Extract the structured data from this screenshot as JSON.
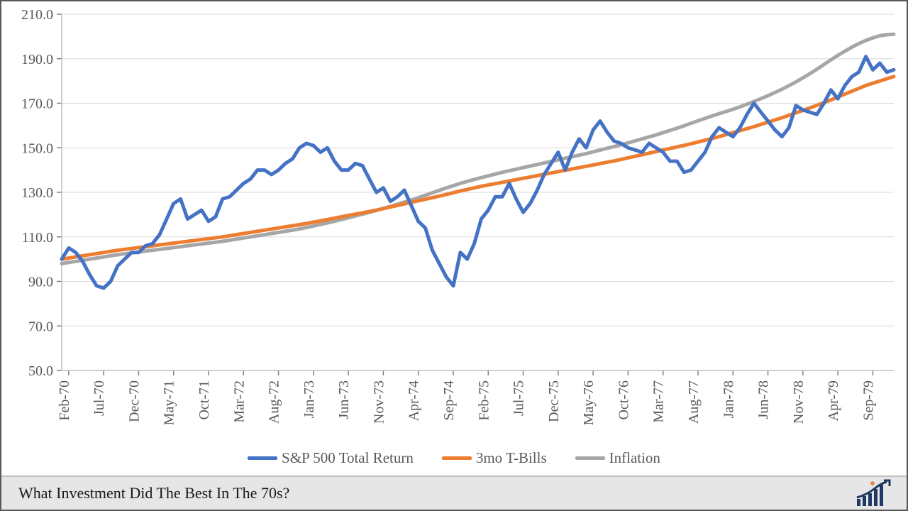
{
  "footer": {
    "title": "What Investment Did The Best In The 70s?"
  },
  "chart": {
    "type": "line",
    "background_color": "#ffffff",
    "grid_color": "#d9d9d9",
    "axis_color": "#bfbfbf",
    "tick_color": "#808080",
    "label_color": "#595959",
    "label_fontsize": 20,
    "ylim": [
      50,
      210
    ],
    "ytick_step": 20,
    "yticks": [
      "50.0",
      "70.0",
      "90.0",
      "110.0",
      "130.0",
      "150.0",
      "170.0",
      "190.0",
      "210.0"
    ],
    "xticks": [
      "Feb-70",
      "Jul-70",
      "Dec-70",
      "May-71",
      "Oct-71",
      "Mar-72",
      "Aug-72",
      "Jan-73",
      "Jun-73",
      "Nov-73",
      "Apr-74",
      "Sep-74",
      "Feb-75",
      "Jul-75",
      "Dec-75",
      "May-76",
      "Oct-76",
      "Mar-77",
      "Aug-77",
      "Jan-78",
      "Jun-78",
      "Nov-78",
      "Apr-79",
      "Sep-79"
    ],
    "x_count": 120,
    "line_width": 5,
    "series": [
      {
        "name": "S&P 500 Total Return",
        "color": "#4472c4",
        "values": [
          100,
          105,
          103,
          99,
          93,
          88,
          87,
          90,
          97,
          100,
          103,
          103,
          106,
          107,
          111,
          118,
          125,
          127,
          118,
          120,
          122,
          117,
          119,
          127,
          128,
          131,
          134,
          136,
          140,
          140,
          138,
          140,
          143,
          145,
          150,
          152,
          151,
          148,
          150,
          144,
          140,
          140,
          143,
          142,
          136,
          130,
          132,
          126,
          128,
          131,
          124,
          117,
          114,
          104,
          98,
          92,
          88,
          103,
          100,
          107,
          118,
          122,
          128,
          128,
          134,
          127,
          121,
          125,
          131,
          138,
          143,
          148,
          140,
          148,
          154,
          150,
          158,
          162,
          157,
          153,
          152,
          150,
          149,
          148,
          152,
          150,
          148,
          144,
          144,
          139,
          140,
          144,
          148,
          155,
          159,
          157,
          155,
          159,
          165,
          170,
          166,
          162,
          158,
          155,
          159,
          169,
          167,
          166,
          165,
          170,
          176,
          172,
          178,
          182,
          184,
          191,
          185,
          188,
          184,
          185
        ]
      },
      {
        "name": "3mo T-Bills",
        "color": "#ed7d31",
        "values": [
          100,
          100.5,
          101,
          101.5,
          102,
          102.5,
          103,
          103.5,
          104,
          104.4,
          104.8,
          105.2,
          105.6,
          106,
          106.4,
          106.8,
          107.2,
          107.6,
          108,
          108.4,
          108.8,
          109.2,
          109.6,
          110,
          110.5,
          111,
          111.5,
          112,
          112.5,
          113,
          113.5,
          114,
          114.5,
          115,
          115.5,
          116,
          116.6,
          117.2,
          117.8,
          118.4,
          119,
          119.6,
          120.2,
          120.8,
          121.4,
          122,
          122.7,
          123.4,
          124.1,
          124.8,
          125.5,
          126.2,
          126.9,
          127.6,
          128.3,
          129,
          129.8,
          130.6,
          131.3,
          132,
          132.7,
          133.3,
          133.9,
          134.5,
          135.1,
          135.7,
          136.3,
          136.9,
          137.5,
          138.1,
          138.7,
          139.3,
          139.9,
          140.5,
          141.1,
          141.7,
          142.3,
          142.9,
          143.5,
          144.1,
          144.8,
          145.5,
          146.2,
          146.9,
          147.6,
          148.3,
          149,
          149.7,
          150.4,
          151.1,
          151.8,
          152.6,
          153.4,
          154.2,
          155,
          155.9,
          156.8,
          157.7,
          158.6,
          159.5,
          160.5,
          161.5,
          162.5,
          163.5,
          164.6,
          165.7,
          166.8,
          167.9,
          169.1,
          170.3,
          171.5,
          172.8,
          174.1,
          175.4,
          176.7,
          178,
          179,
          180,
          181,
          182
        ]
      },
      {
        "name": "Inflation",
        "color": "#a6a6a6",
        "values": [
          98,
          98.5,
          99,
          99.5,
          100,
          100.5,
          101,
          101.5,
          102,
          102.4,
          102.8,
          103.2,
          103.6,
          104,
          104.4,
          104.8,
          105.2,
          105.6,
          106,
          106.4,
          106.8,
          107.2,
          107.6,
          108,
          108.5,
          109,
          109.5,
          110,
          110.5,
          111,
          111.5,
          112,
          112.5,
          113,
          113.6,
          114.2,
          114.9,
          115.6,
          116.3,
          117,
          117.8,
          118.6,
          119.4,
          120.2,
          121,
          121.9,
          122.8,
          123.7,
          124.6,
          125.6,
          126.6,
          127.6,
          128.7,
          129.8,
          130.9,
          132,
          133,
          134,
          134.9,
          135.8,
          136.6,
          137.4,
          138.2,
          139,
          139.7,
          140.4,
          141.1,
          141.8,
          142.5,
          143.2,
          143.9,
          144.6,
          145.3,
          146,
          146.7,
          147.4,
          148.2,
          149,
          149.8,
          150.6,
          151.4,
          152.2,
          153.1,
          154,
          154.9,
          155.8,
          156.8,
          157.8,
          158.8,
          159.9,
          161,
          162.1,
          163.2,
          164.3,
          165.3,
          166.3,
          167.3,
          168.4,
          169.6,
          170.8,
          172.1,
          173.4,
          174.8,
          176.3,
          177.9,
          179.6,
          181.4,
          183.3,
          185.3,
          187.4,
          189.5,
          191.5,
          193.4,
          195.2,
          196.8,
          198.2,
          199.4,
          200.3,
          200.8,
          201
        ]
      }
    ],
    "legend": [
      {
        "label": "S&P 500 Total Return",
        "color": "#4472c4"
      },
      {
        "label": "3mo T-Bills",
        "color": "#ed7d31"
      },
      {
        "label": "Inflation",
        "color": "#a6a6a6"
      }
    ]
  }
}
